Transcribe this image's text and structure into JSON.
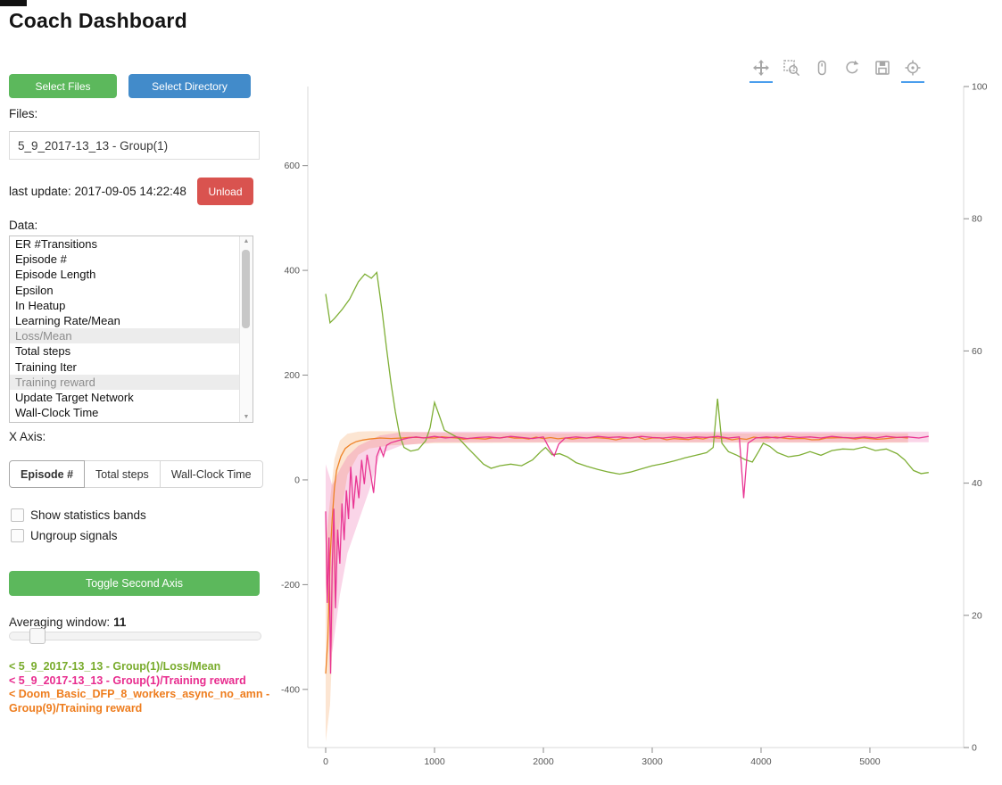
{
  "title": "Coach Dashboard",
  "sidebar": {
    "select_files": "Select Files",
    "select_directory": "Select Directory",
    "files_label": "Files:",
    "file_item": "5_9_2017-13_13 - Group(1)",
    "last_update": "last update: 2017-09-05 14:22:48",
    "unload": "Unload",
    "data_label": "Data:",
    "data_items": [
      {
        "label": "ER #Transitions",
        "selected": false
      },
      {
        "label": "Episode #",
        "selected": false
      },
      {
        "label": "Episode Length",
        "selected": false
      },
      {
        "label": "Epsilon",
        "selected": false
      },
      {
        "label": "In Heatup",
        "selected": false
      },
      {
        "label": "Learning Rate/Mean",
        "selected": false
      },
      {
        "label": "Loss/Mean",
        "selected": true
      },
      {
        "label": "Total steps",
        "selected": false
      },
      {
        "label": "Training Iter",
        "selected": false
      },
      {
        "label": "Training reward",
        "selected": true
      },
      {
        "label": "Update Target Network",
        "selected": false
      },
      {
        "label": "Wall-Clock Time",
        "selected": false
      }
    ],
    "x_axis_label": "X Axis:",
    "x_axis_options": [
      "Episode #",
      "Total steps",
      "Wall-Clock Time"
    ],
    "x_axis_selected": "Episode #",
    "checkboxes": [
      {
        "label": "Show statistics bands",
        "checked": false
      },
      {
        "label": "Ungroup signals",
        "checked": false
      }
    ],
    "toggle_second_axis": "Toggle Second Axis",
    "averaging_label": "Averaging window:",
    "averaging_value": "11",
    "legend": [
      {
        "text": "< 5_9_2017-13_13 - Group(1)/Loss/Mean",
        "color": "#78ab2b"
      },
      {
        "text": "< 5_9_2017-13_13 - Group(1)/Training reward",
        "color": "#e82c8e"
      },
      {
        "text": "< Doom_Basic_DFP_8_workers_async_no_amn - Group(9)/Training reward",
        "color": "#ee7d1e"
      }
    ]
  },
  "toolbar": {
    "icons": [
      "pan-icon",
      "box-zoom-icon",
      "wheel-zoom-icon",
      "reset-icon",
      "save-icon",
      "hover-icon",
      "bokeh-logo"
    ],
    "active": [
      "pan-icon",
      "hover-icon"
    ]
  },
  "chart_data": {
    "type": "line",
    "title": "",
    "xlabel": "",
    "ylabel": "",
    "xlim": [
      -164,
      5861
    ],
    "ylim_left": [
      -511,
      751
    ],
    "ylim_right": [
      0,
      100
    ],
    "xticks": [
      0,
      1000,
      2000,
      3000,
      4000,
      5000
    ],
    "yticks_left": [
      600,
      400,
      200,
      0,
      -200,
      -400
    ],
    "yticks_right": [
      100,
      80,
      60,
      40,
      20,
      0
    ],
    "grid": false,
    "legend_position": "sidebar",
    "series": [
      {
        "name": "Doom_Basic_DFP_8_workers_async_no_amn - Group(9)/Training reward",
        "color": "#ee7d1e",
        "axis": "left",
        "noise": 3,
        "band": {
          "x": [
            0,
            40,
            80,
            130,
            200,
            300,
            400,
            600,
            1000,
            2000,
            3000,
            4000,
            5000,
            5350
          ],
          "upper": [
            -120,
            -40,
            40,
            75,
            88,
            92,
            93,
            93,
            90,
            89,
            89,
            89,
            89,
            89
          ],
          "lower": [
            -500,
            -430,
            -220,
            -80,
            10,
            48,
            60,
            66,
            70,
            71,
            71,
            71,
            71,
            71
          ]
        },
        "points": [
          [
            0,
            -370
          ],
          [
            20,
            -305
          ],
          [
            40,
            -150
          ],
          [
            60,
            -75
          ],
          [
            80,
            -15
          ],
          [
            100,
            18
          ],
          [
            140,
            45
          ],
          [
            180,
            60
          ],
          [
            230,
            68
          ],
          [
            280,
            73
          ],
          [
            340,
            76
          ],
          [
            400,
            78
          ],
          [
            500,
            80
          ],
          [
            600,
            79
          ],
          [
            700,
            80
          ],
          [
            850,
            81
          ],
          [
            1000,
            80
          ],
          [
            1200,
            80
          ],
          [
            1400,
            79
          ],
          [
            1600,
            80
          ],
          [
            1800,
            80
          ],
          [
            2000,
            79
          ],
          [
            2200,
            80
          ],
          [
            2400,
            80
          ],
          [
            2600,
            79
          ],
          [
            2800,
            80
          ],
          [
            3000,
            80
          ],
          [
            3200,
            79
          ],
          [
            3400,
            80
          ],
          [
            3600,
            80
          ],
          [
            3800,
            79
          ],
          [
            4000,
            80
          ],
          [
            4200,
            80
          ],
          [
            4400,
            79
          ],
          [
            4600,
            80
          ],
          [
            4800,
            80
          ],
          [
            5000,
            79
          ],
          [
            5200,
            80
          ],
          [
            5350,
            80
          ]
        ]
      },
      {
        "name": "5_9_2017-13_13 - Group(1)/Loss/Mean",
        "color": "#78ab2b",
        "axis": "left",
        "noise": 9,
        "points": [
          [
            0,
            355
          ],
          [
            40,
            300
          ],
          [
            80,
            308
          ],
          [
            150,
            325
          ],
          [
            220,
            345
          ],
          [
            300,
            378
          ],
          [
            360,
            393
          ],
          [
            420,
            385
          ],
          [
            470,
            396
          ],
          [
            520,
            320
          ],
          [
            560,
            250
          ],
          [
            600,
            185
          ],
          [
            640,
            130
          ],
          [
            680,
            85
          ],
          [
            720,
            62
          ],
          [
            780,
            55
          ],
          [
            850,
            58
          ],
          [
            920,
            75
          ],
          [
            960,
            100
          ],
          [
            1000,
            148
          ],
          [
            1040,
            125
          ],
          [
            1090,
            95
          ],
          [
            1150,
            88
          ],
          [
            1220,
            80
          ],
          [
            1300,
            62
          ],
          [
            1380,
            45
          ],
          [
            1450,
            30
          ],
          [
            1520,
            22
          ],
          [
            1600,
            27
          ],
          [
            1700,
            30
          ],
          [
            1800,
            27
          ],
          [
            1900,
            38
          ],
          [
            1980,
            55
          ],
          [
            2020,
            62
          ],
          [
            2080,
            48
          ],
          [
            2150,
            50
          ],
          [
            2220,
            44
          ],
          [
            2300,
            33
          ],
          [
            2400,
            26
          ],
          [
            2500,
            20
          ],
          [
            2600,
            15
          ],
          [
            2700,
            11
          ],
          [
            2800,
            15
          ],
          [
            2900,
            21
          ],
          [
            3000,
            27
          ],
          [
            3100,
            31
          ],
          [
            3200,
            36
          ],
          [
            3300,
            42
          ],
          [
            3400,
            47
          ],
          [
            3500,
            52
          ],
          [
            3560,
            62
          ],
          [
            3600,
            155
          ],
          [
            3640,
            70
          ],
          [
            3700,
            54
          ],
          [
            3780,
            47
          ],
          [
            3850,
            39
          ],
          [
            3920,
            34
          ],
          [
            3980,
            55
          ],
          [
            4020,
            70
          ],
          [
            4080,
            64
          ],
          [
            4150,
            52
          ],
          [
            4250,
            44
          ],
          [
            4350,
            47
          ],
          [
            4450,
            54
          ],
          [
            4550,
            47
          ],
          [
            4650,
            56
          ],
          [
            4750,
            59
          ],
          [
            4850,
            58
          ],
          [
            4950,
            63
          ],
          [
            5050,
            56
          ],
          [
            5150,
            59
          ],
          [
            5250,
            50
          ],
          [
            5320,
            38
          ],
          [
            5400,
            18
          ],
          [
            5470,
            12
          ],
          [
            5540,
            14
          ]
        ]
      },
      {
        "name": "5_9_2017-13_13 - Group(1)/Training reward",
        "color": "#e82c8e",
        "axis": "left",
        "noise": 6,
        "band": {
          "x": [
            0,
            60,
            130,
            200,
            300,
            400,
            500,
            700,
            1000,
            3000,
            5540
          ],
          "upper": [
            30,
            -10,
            20,
            45,
            65,
            75,
            85,
            91,
            92,
            92,
            92
          ],
          "lower": [
            -200,
            -330,
            -220,
            -140,
            -80,
            -20,
            50,
            66,
            72,
            72,
            72
          ]
        },
        "points": [
          [
            0,
            -60
          ],
          [
            15,
            -235
          ],
          [
            30,
            -110
          ],
          [
            45,
            -370
          ],
          [
            60,
            -170
          ],
          [
            75,
            -55
          ],
          [
            90,
            -245
          ],
          [
            110,
            -95
          ],
          [
            130,
            -160
          ],
          [
            150,
            -45
          ],
          [
            170,
            -115
          ],
          [
            190,
            -20
          ],
          [
            210,
            -75
          ],
          [
            230,
            25
          ],
          [
            255,
            -55
          ],
          [
            280,
            8
          ],
          [
            305,
            -35
          ],
          [
            330,
            38
          ],
          [
            355,
            -8
          ],
          [
            380,
            48
          ],
          [
            410,
            15
          ],
          [
            440,
            -25
          ],
          [
            470,
            45
          ],
          [
            500,
            62
          ],
          [
            530,
            45
          ],
          [
            560,
            66
          ],
          [
            600,
            71
          ],
          [
            650,
            74
          ],
          [
            700,
            77
          ],
          [
            760,
            80
          ],
          [
            830,
            82
          ],
          [
            900,
            80
          ],
          [
            1000,
            83
          ],
          [
            1100,
            80
          ],
          [
            1200,
            82
          ],
          [
            1300,
            79
          ],
          [
            1400,
            81
          ],
          [
            1500,
            82
          ],
          [
            1600,
            80
          ],
          [
            1700,
            83
          ],
          [
            1800,
            81
          ],
          [
            1900,
            79
          ],
          [
            2000,
            82
          ],
          [
            2060,
            58
          ],
          [
            2100,
            46
          ],
          [
            2140,
            68
          ],
          [
            2200,
            80
          ],
          [
            2300,
            82
          ],
          [
            2400,
            80
          ],
          [
            2500,
            83
          ],
          [
            2600,
            81
          ],
          [
            2700,
            82
          ],
          [
            2800,
            80
          ],
          [
            2900,
            83
          ],
          [
            3000,
            81
          ],
          [
            3100,
            80
          ],
          [
            3200,
            82
          ],
          [
            3300,
            80
          ],
          [
            3400,
            82
          ],
          [
            3500,
            81
          ],
          [
            3600,
            83
          ],
          [
            3700,
            80
          ],
          [
            3800,
            82
          ],
          [
            3840,
            -35
          ],
          [
            3880,
            70
          ],
          [
            3950,
            80
          ],
          [
            4050,
            82
          ],
          [
            4150,
            80
          ],
          [
            4250,
            83
          ],
          [
            4350,
            81
          ],
          [
            4450,
            82
          ],
          [
            4550,
            80
          ],
          [
            4650,
            83
          ],
          [
            4750,
            81
          ],
          [
            4850,
            80
          ],
          [
            4950,
            82
          ],
          [
            5050,
            80
          ],
          [
            5150,
            83
          ],
          [
            5250,
            81
          ],
          [
            5350,
            82
          ],
          [
            5450,
            80
          ],
          [
            5540,
            83
          ]
        ]
      }
    ]
  }
}
